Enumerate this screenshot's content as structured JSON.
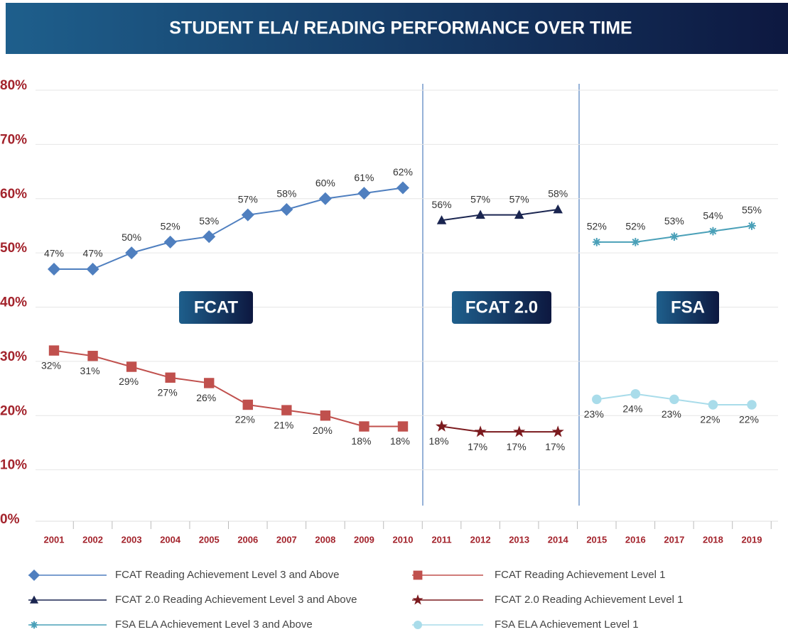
{
  "chart_data": {
    "type": "line",
    "title": "STUDENT ELA/ READING PERFORMANCE OVER TIME",
    "categories": [
      "2001",
      "2002",
      "2003",
      "2004",
      "2005",
      "2006",
      "2007",
      "2008",
      "2009",
      "2010",
      "2011",
      "2012",
      "2013",
      "2014",
      "2015",
      "2016",
      "2017",
      "2018",
      "2019"
    ],
    "ylim": [
      0,
      80
    ],
    "yticks": [
      {
        "value": 0,
        "label": "0%"
      },
      {
        "value": 10,
        "label": "10%"
      },
      {
        "value": 20,
        "label": "20%"
      },
      {
        "value": 30,
        "label": "30%"
      },
      {
        "value": 40,
        "label": "40%"
      },
      {
        "value": 50,
        "label": "50%"
      },
      {
        "value": 60,
        "label": "60%"
      },
      {
        "value": 70,
        "label": "70%"
      },
      {
        "value": 80,
        "label": "80%"
      }
    ],
    "grid": true,
    "annotations": [
      "FCAT",
      "FCAT 2.0",
      "FSA"
    ],
    "series": [
      {
        "name": "FCAT Reading Achievement Level 3 and Above",
        "color": "#4f7fbf",
        "marker": "diamond",
        "values": [
          47,
          47,
          50,
          52,
          53,
          57,
          58,
          60,
          61,
          62,
          null,
          null,
          null,
          null,
          null,
          null,
          null,
          null,
          null
        ],
        "value_labels": [
          "47%",
          "47%",
          "50%",
          "52%",
          "53%",
          "57%",
          "58%",
          "60%",
          "61%",
          "62%",
          null,
          null,
          null,
          null,
          null,
          null,
          null,
          null,
          null
        ]
      },
      {
        "name": "FCAT Reading Achievement Level 1",
        "color": "#c0504d",
        "marker": "square",
        "values": [
          32,
          31,
          29,
          27,
          26,
          22,
          21,
          20,
          18,
          18,
          null,
          null,
          null,
          null,
          null,
          null,
          null,
          null,
          null
        ],
        "value_labels": [
          "32%",
          "31%",
          "29%",
          "27%",
          "26%",
          "22%",
          "21%",
          "20%",
          "18%",
          "18%",
          null,
          null,
          null,
          null,
          null,
          null,
          null,
          null,
          null
        ]
      },
      {
        "name": "FCAT 2.0 Reading Achievement Level 3 and Above",
        "color": "#1a2550",
        "marker": "triangle",
        "values": [
          null,
          null,
          null,
          null,
          null,
          null,
          null,
          null,
          null,
          null,
          56,
          57,
          57,
          58,
          null,
          null,
          null,
          null,
          null
        ],
        "value_labels": [
          null,
          null,
          null,
          null,
          null,
          null,
          null,
          null,
          null,
          null,
          "56%",
          "57%",
          "57%",
          "58%",
          null,
          null,
          null,
          null,
          null
        ]
      },
      {
        "name": "FCAT 2.0 Reading Achievement Level 1",
        "color": "#7b1a1e",
        "marker": "star",
        "values": [
          null,
          null,
          null,
          null,
          null,
          null,
          null,
          null,
          null,
          null,
          18,
          17,
          17,
          17,
          null,
          null,
          null,
          null,
          null
        ],
        "value_labels": [
          null,
          null,
          null,
          null,
          null,
          null,
          null,
          null,
          null,
          null,
          "18%",
          "17%",
          "17%",
          "17%",
          null,
          null,
          null,
          null,
          null
        ]
      },
      {
        "name": "FSA ELA Achievement Level 3 and Above",
        "color": "#4aa0b8",
        "marker": "asterisk",
        "values": [
          null,
          null,
          null,
          null,
          null,
          null,
          null,
          null,
          null,
          null,
          null,
          null,
          null,
          null,
          52,
          52,
          53,
          54,
          55
        ],
        "value_labels": [
          null,
          null,
          null,
          null,
          null,
          null,
          null,
          null,
          null,
          null,
          null,
          null,
          null,
          null,
          "52%",
          "52%",
          "53%",
          "54%",
          "55%"
        ]
      },
      {
        "name": "FSA ELA Achievement Level 1",
        "color": "#a9dcea",
        "marker": "circle",
        "values": [
          null,
          null,
          null,
          null,
          null,
          null,
          null,
          null,
          null,
          null,
          null,
          null,
          null,
          null,
          23,
          24,
          23,
          22,
          22
        ],
        "value_labels": [
          null,
          null,
          null,
          null,
          null,
          null,
          null,
          null,
          null,
          null,
          null,
          null,
          null,
          null,
          "23%",
          "24%",
          "23%",
          "22%",
          "22%"
        ]
      }
    ]
  }
}
